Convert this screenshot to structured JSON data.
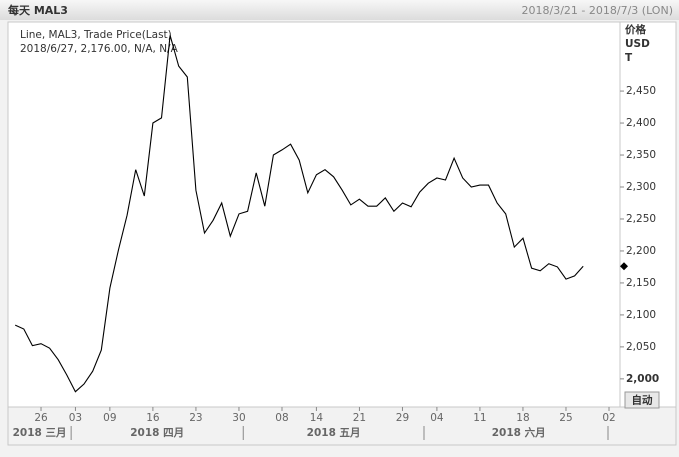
{
  "chart_data": {
    "type": "line",
    "title": "每天 MAL3",
    "subtitle": "2018/3/21 - 2018/7/3 (LON)",
    "y_axis_label": [
      "价格",
      "USD",
      "T"
    ],
    "readout": "2018/6/27, 2,176.00, N/A, N/A",
    "autoscale_button": "自动",
    "x": [
      "2018-03-21",
      "2018-03-22",
      "2018-03-23",
      "2018-03-26",
      "2018-03-27",
      "2018-03-28",
      "2018-03-29",
      "2018-04-03",
      "2018-04-04",
      "2018-04-05",
      "2018-04-06",
      "2018-04-09",
      "2018-04-10",
      "2018-04-11",
      "2018-04-12",
      "2018-04-13",
      "2018-04-16",
      "2018-04-17",
      "2018-04-18",
      "2018-04-19",
      "2018-04-20",
      "2018-04-23",
      "2018-04-24",
      "2018-04-25",
      "2018-04-26",
      "2018-04-27",
      "2018-04-30",
      "2018-05-01",
      "2018-05-02",
      "2018-05-03",
      "2018-05-04",
      "2018-05-08",
      "2018-05-09",
      "2018-05-10",
      "2018-05-11",
      "2018-05-14",
      "2018-05-15",
      "2018-05-16",
      "2018-05-17",
      "2018-05-18",
      "2018-05-21",
      "2018-05-22",
      "2018-05-23",
      "2018-05-24",
      "2018-05-25",
      "2018-05-29",
      "2018-05-30",
      "2018-05-31",
      "2018-06-01",
      "2018-06-04",
      "2018-06-05",
      "2018-06-06",
      "2018-06-07",
      "2018-06-08",
      "2018-06-11",
      "2018-06-12",
      "2018-06-13",
      "2018-06-14",
      "2018-06-15",
      "2018-06-18",
      "2018-06-19",
      "2018-06-20",
      "2018-06-21",
      "2018-06-22",
      "2018-06-25",
      "2018-06-26",
      "2018-06-27",
      "2018-06-28",
      "2018-06-29",
      "2018-07-02"
    ],
    "series": [
      {
        "name": "Line, MAL3, Trade Price(Last)",
        "color": "#000000",
        "values": [
          2084,
          2078,
          2052,
          2055,
          2048,
          2030,
          2006,
          1980,
          1992,
          2012,
          2045,
          2142,
          2202,
          2256,
          2327,
          2286,
          2400,
          2408,
          2537,
          2489,
          2472,
          2295,
          2228,
          2248,
          2275,
          2223,
          2258,
          2262,
          2322,
          2270,
          2350,
          2358,
          2367,
          2342,
          2291,
          2319,
          2327,
          2316,
          2295,
          2272,
          2281,
          2270,
          2270,
          2283,
          2262,
          2275,
          2269,
          2292,
          2306,
          2314,
          2311,
          2345,
          2314,
          2300,
          2303,
          2303,
          2275,
          2258,
          2206,
          2220,
          2173,
          2169,
          2180,
          2175,
          2156,
          2161,
          2176,
          null,
          null,
          null
        ]
      }
    ],
    "ylim": [
      1956,
      2558
    ],
    "yticks": [
      {
        "value": 2000,
        "label": "2,000"
      },
      {
        "value": 2050,
        "label": "2,050"
      },
      {
        "value": 2100,
        "label": "2,100"
      },
      {
        "value": 2150,
        "label": "2,150"
      },
      {
        "value": 2200,
        "label": "2,200"
      },
      {
        "value": 2250,
        "label": "2,250"
      },
      {
        "value": 2300,
        "label": "2,300"
      },
      {
        "value": 2350,
        "label": "2,350"
      },
      {
        "value": 2400,
        "label": "2,400"
      },
      {
        "value": 2450,
        "label": "2,450"
      }
    ],
    "xticks": [
      {
        "value": "2018-03-26",
        "label": "26"
      },
      {
        "value": "2018-04-03",
        "label": "03"
      },
      {
        "value": "2018-04-09",
        "label": "09"
      },
      {
        "value": "2018-04-16",
        "label": "16"
      },
      {
        "value": "2018-04-23",
        "label": "23"
      },
      {
        "value": "2018-04-30",
        "label": "30"
      },
      {
        "value": "2018-05-08",
        "label": "08"
      },
      {
        "value": "2018-05-14",
        "label": "14"
      },
      {
        "value": "2018-05-21",
        "label": "21"
      },
      {
        "value": "2018-05-29",
        "label": "29"
      },
      {
        "value": "2018-06-04",
        "label": "04"
      },
      {
        "value": "2018-06-11",
        "label": "11"
      },
      {
        "value": "2018-06-18",
        "label": "18"
      },
      {
        "value": "2018-06-25",
        "label": "25"
      },
      {
        "value": "2018-07-02",
        "label": "02"
      }
    ],
    "months": [
      {
        "value": "2018-03",
        "label": "2018 三月"
      },
      {
        "value": "2018-04",
        "label": "2018 四月"
      },
      {
        "value": "2018-05",
        "label": "2018 五月"
      },
      {
        "value": "2018-06",
        "label": "2018 六月"
      }
    ]
  }
}
